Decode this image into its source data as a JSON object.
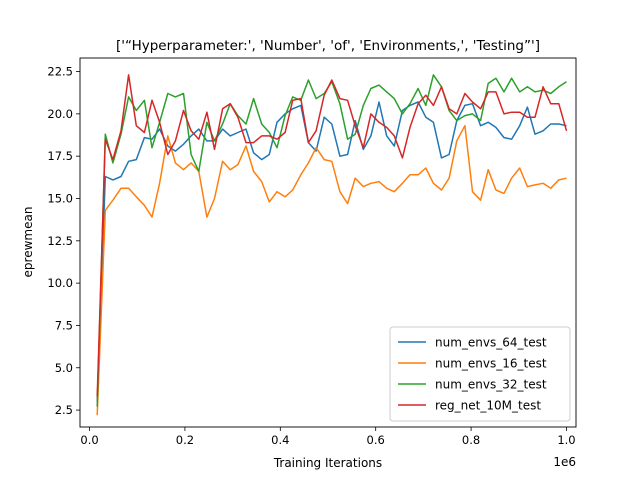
{
  "chart_data": {
    "type": "line",
    "title": "['“Hyperparameter:', 'Number', 'of', 'Environments,', 'Testing”']",
    "xlabel": "Training Iterations",
    "ylabel": "eprewmean",
    "x_multiplier_label": "1e6",
    "xlim": [
      -0.02,
      1.02
    ],
    "ylim": [
      1.5,
      23.3
    ],
    "xticks": [
      0.0,
      0.2,
      0.4,
      0.6,
      0.8,
      1.0
    ],
    "xtick_labels": [
      "0.0",
      "0.2",
      "0.4",
      "0.6",
      "0.8",
      "1.0"
    ],
    "yticks": [
      2.5,
      5.0,
      7.5,
      10.0,
      12.5,
      15.0,
      17.5,
      20.0,
      22.5
    ],
    "ytick_labels": [
      "2.5",
      "5.0",
      "7.5",
      "10.0",
      "12.5",
      "15.0",
      "17.5",
      "20.0",
      "22.5"
    ],
    "grid": false,
    "legend_position": "lower right",
    "x_values": [
      0.016,
      0.033,
      0.049,
      0.066,
      0.082,
      0.098,
      0.115,
      0.131,
      0.147,
      0.164,
      0.18,
      0.197,
      0.213,
      0.229,
      0.246,
      0.262,
      0.279,
      0.295,
      0.311,
      0.328,
      0.344,
      0.361,
      0.377,
      0.393,
      0.41,
      0.426,
      0.443,
      0.459,
      0.475,
      0.492,
      0.508,
      0.525,
      0.541,
      0.557,
      0.574,
      0.59,
      0.607,
      0.623,
      0.639,
      0.656,
      0.672,
      0.689,
      0.705,
      0.721,
      0.738,
      0.754,
      0.77,
      0.787,
      0.803,
      0.82,
      0.836,
      0.852,
      0.869,
      0.885,
      0.902,
      0.918,
      0.934,
      0.951,
      0.967,
      0.984,
      1.0
    ],
    "series": [
      {
        "name": "num_envs_64_test",
        "color": "#1f77b4",
        "values": [
          3.0,
          16.3,
          16.1,
          16.3,
          17.2,
          17.3,
          18.6,
          18.5,
          19.1,
          18.1,
          17.8,
          18.2,
          18.7,
          19.1,
          18.4,
          18.4,
          19.1,
          18.7,
          18.9,
          19.1,
          17.7,
          17.3,
          17.6,
          19.5,
          20.0,
          20.3,
          20.5,
          18.3,
          17.8,
          19.8,
          19.4,
          17.5,
          17.6,
          19.6,
          17.9,
          18.7,
          20.7,
          18.7,
          18.1,
          20.2,
          20.5,
          20.7,
          19.8,
          19.5,
          17.4,
          17.6,
          19.6,
          20.5,
          20.6,
          19.3,
          19.5,
          19.2,
          18.6,
          18.5,
          19.3,
          20.4,
          18.8,
          19.0,
          19.4,
          19.4,
          19.3
        ]
      },
      {
        "name": "num_envs_16_test",
        "color": "#ff7f0e",
        "values": [
          2.2,
          14.3,
          14.9,
          15.6,
          15.6,
          15.1,
          14.6,
          13.9,
          15.9,
          18.7,
          17.1,
          16.7,
          17.1,
          16.6,
          13.9,
          15.0,
          17.2,
          16.7,
          17.0,
          18.1,
          16.6,
          16.0,
          14.8,
          15.4,
          15.1,
          15.5,
          16.4,
          17.1,
          18.0,
          17.3,
          17.2,
          15.4,
          14.7,
          16.2,
          15.7,
          15.9,
          16.0,
          15.6,
          15.4,
          15.9,
          16.4,
          16.4,
          16.8,
          15.9,
          15.5,
          16.2,
          18.4,
          19.3,
          15.4,
          14.9,
          16.7,
          15.5,
          15.3,
          16.2,
          16.8,
          15.7,
          15.8,
          15.9,
          15.6,
          16.1,
          16.2
        ]
      },
      {
        "name": "num_envs_32_test",
        "color": "#2ca02c",
        "values": [
          2.7,
          18.8,
          17.1,
          18.8,
          21.0,
          20.2,
          20.8,
          18.0,
          19.5,
          21.2,
          21.0,
          21.2,
          17.6,
          16.6,
          19.5,
          18.4,
          19.4,
          20.6,
          19.9,
          19.4,
          20.9,
          19.4,
          18.9,
          18.0,
          19.9,
          21.0,
          20.8,
          22.0,
          20.9,
          21.2,
          21.9,
          20.6,
          18.5,
          18.8,
          20.5,
          21.5,
          21.7,
          21.3,
          20.9,
          20.0,
          20.6,
          21.5,
          20.5,
          22.3,
          21.6,
          20.2,
          19.6,
          19.9,
          20.0,
          19.6,
          21.8,
          22.1,
          21.3,
          22.1,
          21.3,
          21.6,
          21.3,
          21.4,
          21.2,
          21.6,
          21.9
        ]
      },
      {
        "name": "reg_net_10M_test",
        "color": "#d62728",
        "values": [
          3.3,
          18.5,
          17.3,
          19.0,
          22.3,
          19.3,
          18.9,
          20.8,
          19.5,
          17.6,
          18.4,
          20.2,
          19.0,
          18.5,
          20.1,
          17.9,
          20.3,
          20.6,
          19.8,
          18.3,
          18.3,
          18.7,
          18.7,
          18.5,
          18.9,
          20.8,
          20.9,
          18.3,
          19.0,
          21.1,
          22.0,
          20.9,
          20.8,
          19.3,
          18.0,
          20.0,
          19.5,
          19.2,
          18.7,
          17.4,
          19.2,
          20.6,
          21.1,
          20.5,
          21.6,
          20.3,
          20.0,
          21.2,
          20.7,
          20.3,
          21.3,
          21.3,
          20.0,
          20.1,
          20.1,
          19.8,
          19.8,
          21.6,
          20.6,
          20.6,
          19.0
        ]
      }
    ]
  }
}
